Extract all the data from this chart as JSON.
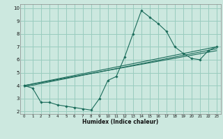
{
  "title": "",
  "xlabel": "Humidex (Indice chaleur)",
  "bg_color": "#cce8df",
  "grid_color": "#99ccbe",
  "line_color": "#1a6b5a",
  "xlim": [
    -0.5,
    23.5
  ],
  "ylim": [
    1.8,
    10.3
  ],
  "xticks": [
    0,
    1,
    2,
    3,
    4,
    5,
    6,
    7,
    8,
    9,
    10,
    11,
    12,
    13,
    14,
    15,
    16,
    17,
    18,
    19,
    20,
    21,
    22,
    23
  ],
  "yticks": [
    2,
    3,
    4,
    5,
    6,
    7,
    8,
    9,
    10
  ],
  "line1_x": [
    0,
    1,
    2,
    3,
    4,
    5,
    6,
    7,
    8,
    9,
    10,
    11,
    12,
    13,
    14,
    15,
    16,
    17,
    18,
    19,
    20,
    21,
    22,
    23
  ],
  "line1_y": [
    4.0,
    3.8,
    2.7,
    2.7,
    2.5,
    2.4,
    2.3,
    2.2,
    2.1,
    3.0,
    4.4,
    4.7,
    6.2,
    8.0,
    9.8,
    9.3,
    8.8,
    8.2,
    7.0,
    6.5,
    6.1,
    6.0,
    6.7,
    7.0
  ],
  "line2_x": [
    0,
    23
  ],
  "line2_y": [
    4.0,
    7.0
  ],
  "line3_x": [
    0,
    23
  ],
  "line3_y": [
    4.0,
    6.7
  ],
  "line4_x": [
    0,
    23
  ],
  "line4_y": [
    3.9,
    6.85
  ]
}
